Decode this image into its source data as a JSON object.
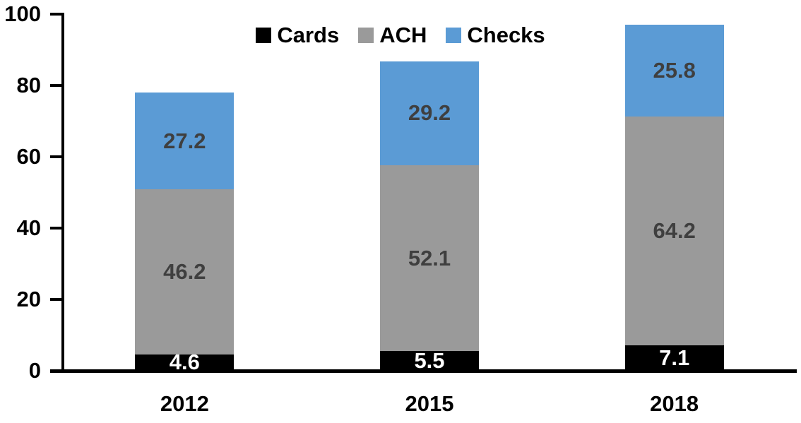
{
  "chart_data": {
    "type": "bar",
    "stacked": true,
    "title": "",
    "categories": [
      "2012",
      "2015",
      "2018"
    ],
    "series": [
      {
        "name": "Cards",
        "color": "#000000",
        "label_color": "#FFFFFF",
        "values": [
          4.6,
          5.5,
          7.1
        ]
      },
      {
        "name": "ACH",
        "color": "#9A9A9A",
        "label_color": "#3F3F3F",
        "values": [
          46.2,
          52.1,
          64.2
        ]
      },
      {
        "name": "Checks",
        "color": "#5B9BD5",
        "label_color": "#3F3F3F",
        "values": [
          27.2,
          29.2,
          25.8
        ]
      }
    ],
    "totals": [
      78.0,
      86.8,
      97.1
    ],
    "ylim": [
      0,
      100
    ],
    "yticks": [
      0,
      20,
      40,
      60,
      80,
      100
    ],
    "grid": "off",
    "legend": {
      "position": "top-center",
      "entries": [
        "Cards",
        "ACH",
        "Checks"
      ]
    },
    "axis_color": "#000000"
  }
}
